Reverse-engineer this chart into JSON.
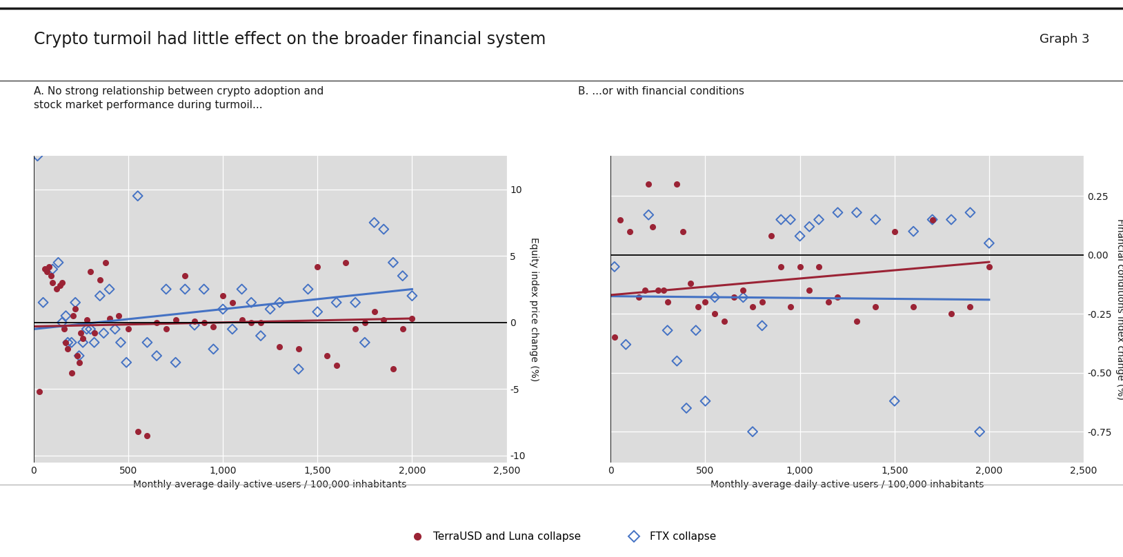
{
  "title": "Crypto turmoil had little effect on the broader financial system",
  "graph_label": "Graph 3",
  "panel_A_title": "A. No strong relationship between crypto adoption and\nstock market performance during turmoil...",
  "panel_B_title": "B. ...or with financial conditions",
  "xlabel": "Monthly average daily active users / 100,000 inhabitants",
  "ylabel_A": "Equity index price change (%)",
  "ylabel_B": "Financial conditions index change (%)",
  "legend_terra": "TerraUSD and Luna collapse",
  "legend_ftx": "FTX collapse",
  "bg_color": "#dcdcdc",
  "fig_bg": "#ffffff",
  "terra_color": "#9b2335",
  "ftx_color": "#4472c4",
  "line_terra_A": {
    "x0": 0,
    "y0": -0.3,
    "x1": 2000,
    "y1": 0.3
  },
  "line_ftx_A": {
    "x0": 0,
    "y0": -0.5,
    "x1": 2000,
    "y1": 2.5
  },
  "line_terra_B": {
    "x0": 0,
    "y0": -0.17,
    "x1": 2000,
    "y1": -0.03
  },
  "line_ftx_B": {
    "x0": 0,
    "y0": -0.175,
    "x1": 2000,
    "y1": -0.19
  },
  "xlim": [
    0,
    2500
  ],
  "ylim_A": [
    -10.5,
    12.5
  ],
  "ylim_B": [
    -0.88,
    0.42
  ],
  "xticks": [
    0,
    500,
    1000,
    1500,
    2000,
    2500
  ],
  "xtick_labels": [
    "0",
    "500",
    "1,000",
    "1,500",
    "2,000",
    "2,500"
  ],
  "yticks_A": [
    -10,
    -5,
    0,
    5,
    10
  ],
  "ytick_labels_A": [
    "-10",
    "-5",
    "0",
    "5",
    "10"
  ],
  "yticks_B": [
    -0.75,
    -0.5,
    -0.25,
    0.0,
    0.25
  ],
  "ytick_labels_B": [
    "-0.75",
    "-0.50",
    "-0.25",
    "0.00",
    "0.25"
  ],
  "terra_A_x": [
    30,
    60,
    70,
    80,
    90,
    100,
    120,
    140,
    150,
    160,
    170,
    180,
    200,
    210,
    220,
    230,
    240,
    250,
    260,
    280,
    300,
    320,
    350,
    380,
    400,
    450,
    500,
    550,
    600,
    650,
    700,
    750,
    800,
    850,
    900,
    950,
    1000,
    1050,
    1100,
    1150,
    1200,
    1300,
    1400,
    1500,
    1550,
    1600,
    1650,
    1700,
    1750,
    1800,
    1850,
    1900,
    1950,
    2000
  ],
  "terra_A_y": [
    -5.2,
    4.0,
    3.8,
    4.2,
    3.5,
    3.0,
    2.5,
    2.8,
    3.0,
    -0.5,
    -1.5,
    -2.0,
    -3.8,
    0.5,
    1.0,
    -2.5,
    -3.0,
    -0.8,
    -1.2,
    0.2,
    3.8,
    -0.8,
    3.2,
    4.5,
    0.3,
    0.5,
    -0.5,
    -8.2,
    -8.5,
    0.0,
    -0.5,
    0.2,
    3.5,
    0.1,
    0.0,
    -0.3,
    2.0,
    1.5,
    0.2,
    0.0,
    0.0,
    -1.8,
    -2.0,
    4.2,
    -2.5,
    -3.2,
    4.5,
    -0.5,
    0.0,
    0.8,
    0.2,
    -3.5,
    -0.5,
    0.3
  ],
  "ftx_A_x": [
    20,
    50,
    100,
    130,
    150,
    170,
    180,
    200,
    220,
    240,
    260,
    280,
    300,
    320,
    350,
    370,
    400,
    430,
    460,
    490,
    550,
    600,
    650,
    700,
    750,
    800,
    850,
    900,
    950,
    1000,
    1050,
    1100,
    1150,
    1200,
    1250,
    1300,
    1400,
    1450,
    1500,
    1600,
    1700,
    1750,
    1800,
    1850,
    1900,
    1950,
    2000
  ],
  "ftx_A_y": [
    12.5,
    1.5,
    4.0,
    4.5,
    0.0,
    0.5,
    -1.5,
    -1.5,
    1.5,
    -2.5,
    -1.5,
    -0.5,
    -0.5,
    -1.5,
    2.0,
    -0.8,
    2.5,
    -0.5,
    -1.5,
    -3.0,
    9.5,
    -1.5,
    -2.5,
    2.5,
    -3.0,
    2.5,
    -0.2,
    2.5,
    -2.0,
    1.0,
    -0.5,
    2.5,
    1.5,
    -1.0,
    1.0,
    1.5,
    -3.5,
    2.5,
    0.8,
    1.5,
    1.5,
    -1.5,
    7.5,
    7.0,
    4.5,
    3.5,
    2.0
  ],
  "terra_B_x": [
    20,
    50,
    100,
    150,
    180,
    200,
    220,
    250,
    280,
    300,
    350,
    380,
    420,
    460,
    500,
    550,
    600,
    650,
    700,
    750,
    800,
    850,
    900,
    950,
    1000,
    1050,
    1100,
    1150,
    1200,
    1300,
    1400,
    1500,
    1600,
    1700,
    1800,
    1900,
    2000
  ],
  "terra_B_y": [
    -0.35,
    0.15,
    0.1,
    -0.18,
    -0.15,
    0.3,
    0.12,
    -0.15,
    -0.15,
    -0.2,
    0.3,
    0.1,
    -0.12,
    -0.22,
    -0.2,
    -0.25,
    -0.28,
    -0.18,
    -0.15,
    -0.22,
    -0.2,
    0.08,
    -0.05,
    -0.22,
    -0.05,
    -0.15,
    -0.05,
    -0.2,
    -0.18,
    -0.28,
    -0.22,
    0.1,
    -0.22,
    0.15,
    -0.25,
    -0.22,
    -0.05
  ],
  "ftx_B_x": [
    20,
    80,
    200,
    300,
    350,
    400,
    450,
    500,
    550,
    700,
    750,
    800,
    900,
    950,
    1000,
    1050,
    1100,
    1200,
    1300,
    1400,
    1500,
    1600,
    1700,
    1800,
    1900,
    1950,
    2000
  ],
  "ftx_B_y": [
    -0.05,
    -0.38,
    0.17,
    -0.32,
    -0.45,
    -0.65,
    -0.32,
    -0.62,
    -0.18,
    -0.18,
    -0.75,
    -0.3,
    0.15,
    0.15,
    0.08,
    0.12,
    0.15,
    0.18,
    0.18,
    0.15,
    -0.62,
    0.1,
    0.15,
    0.15,
    0.18,
    -0.75,
    0.05
  ]
}
